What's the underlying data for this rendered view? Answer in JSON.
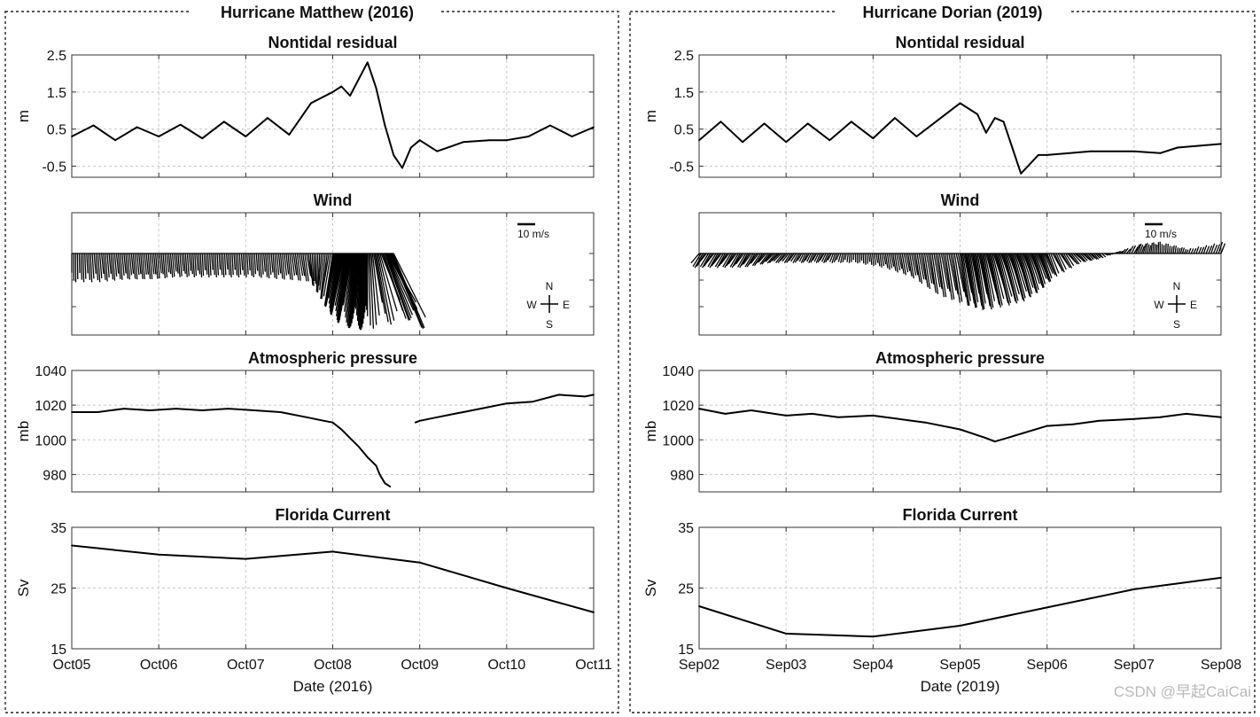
{
  "watermark": "CSDN @早起CaiCai",
  "storms": [
    {
      "title": "Hurricane Matthew (2016)",
      "xlabel": "Date (2016)",
      "x_ticks": [
        "Oct05",
        "Oct06",
        "Oct07",
        "Oct08",
        "Oct09",
        "Oct10",
        "Oct11"
      ],
      "x_range_days": [
        0,
        6
      ]
    },
    {
      "title": "Hurricane Dorian (2019)",
      "xlabel": "Date (2019)",
      "x_ticks": [
        "Sep02",
        "Sep03",
        "Sep04",
        "Sep05",
        "Sep06",
        "Sep07",
        "Sep08"
      ],
      "x_range_days": [
        0,
        6
      ]
    }
  ],
  "panel_titles": {
    "residual": "Nontidal residual",
    "wind": "Wind",
    "pressure": "Atmospheric pressure",
    "current": "Florida Current"
  },
  "axis_labels": {
    "residual": "m",
    "pressure": "mb",
    "current": "Sv"
  },
  "wind_legend": {
    "scale_label": "10 m/s",
    "compass": {
      "n": "N",
      "s": "S",
      "e": "E",
      "w": "W"
    }
  },
  "chart_data": [
    {
      "type": "line",
      "storm": "Hurricane Matthew (2016)",
      "title": "Nontidal residual",
      "ylabel": "m",
      "x_ticks": [
        "Oct05",
        "Oct06",
        "Oct07",
        "Oct08",
        "Oct09",
        "Oct10",
        "Oct11"
      ],
      "yticks": [
        -0.5,
        0.5,
        1.5,
        2.5
      ],
      "ylim": [
        -0.8,
        2.5
      ],
      "x_start": "Oct05",
      "x": [
        "Oct05 00:00",
        "Oct05 06:00",
        "Oct05 12:00",
        "Oct05 18:00",
        "Oct06 00:00",
        "Oct06 06:00",
        "Oct06 12:00",
        "Oct06 18:00",
        "Oct07 00:00",
        "Oct07 06:00",
        "Oct07 12:00",
        "Oct07 18:00",
        "Oct08 00:00",
        "Oct08 02:24",
        "Oct08 04:48",
        "Oct08 07:12",
        "Oct08 09:36",
        "Oct08 12:00",
        "Oct08 14:24",
        "Oct08 16:48",
        "Oct08 19:12",
        "Oct08 21:36",
        "Oct09 00:00",
        "Oct09 04:48",
        "Oct09 12:00",
        "Oct09 19:12",
        "Oct10 00:00",
        "Oct10 06:00",
        "Oct10 12:00",
        "Oct10 18:00",
        "Oct11 00:00"
      ],
      "y": [
        0.3,
        0.6,
        0.2,
        0.55,
        0.3,
        0.62,
        0.25,
        0.7,
        0.3,
        0.8,
        0.35,
        1.2,
        1.5,
        1.65,
        1.4,
        1.85,
        2.3,
        1.6,
        0.6,
        -0.2,
        -0.55,
        0.0,
        0.2,
        -0.1,
        0.15,
        0.2,
        0.2,
        0.3,
        0.6,
        0.3,
        0.55
      ]
    },
    {
      "type": "line",
      "storm": "Hurricane Dorian (2019)",
      "title": "Nontidal residual",
      "ylabel": "m",
      "x_ticks": [
        "Sep02",
        "Sep03",
        "Sep04",
        "Sep05",
        "Sep06",
        "Sep07",
        "Sep08"
      ],
      "yticks": [
        -0.5,
        0.5,
        1.5,
        2.5
      ],
      "ylim": [
        -0.8,
        2.5
      ],
      "x_start": "Sep02",
      "x": [
        "Sep02 00:00",
        "Sep02 06:00",
        "Sep02 12:00",
        "Sep02 18:00",
        "Sep03 00:00",
        "Sep03 06:00",
        "Sep03 12:00",
        "Sep03 18:00",
        "Sep04 00:00",
        "Sep04 06:00",
        "Sep04 12:00",
        "Sep04 18:00",
        "Sep05 00:00",
        "Sep05 04:48",
        "Sep05 07:12",
        "Sep05 09:36",
        "Sep05 12:00",
        "Sep05 14:24",
        "Sep05 16:48",
        "Sep05 19:12",
        "Sep05 21:36",
        "Sep06 00:00",
        "Sep06 12:00",
        "Sep07 00:00",
        "Sep07 07:12",
        "Sep07 12:00",
        "Sep08 00:00"
      ],
      "y": [
        0.2,
        0.7,
        0.15,
        0.65,
        0.15,
        0.65,
        0.2,
        0.7,
        0.25,
        0.8,
        0.3,
        0.75,
        1.2,
        0.9,
        0.4,
        0.8,
        0.7,
        0.0,
        -0.7,
        -0.45,
        -0.2,
        -0.2,
        -0.1,
        -0.1,
        -0.15,
        0.0,
        0.1
      ]
    },
    {
      "type": "wind_stick",
      "storm": "Hurricane Matthew (2016)",
      "title": "Wind",
      "scale_label": "10 m/s",
      "x_start": "Oct05",
      "x": [
        "Oct05 00:00",
        "Oct05 07:12",
        "Oct05 14:24",
        "Oct05 21:36",
        "Oct06 04:48",
        "Oct06 12:00",
        "Oct06 19:12",
        "Oct07 02:24",
        "Oct07 09:36",
        "Oct07 16:48",
        "Oct08 00:00",
        "Oct08 02:24",
        "Oct08 04:48",
        "Oct08 07:12",
        "Oct08 09:36",
        "Oct08 14:24",
        "Oct08 16:48"
      ],
      "u_ms": [
        0.0,
        0.5,
        0.5,
        0.5,
        0.5,
        0.3,
        0.3,
        0.3,
        0.5,
        1.0,
        -2.0,
        -2.5,
        -2.5,
        -1.0,
        0.0,
        6.0,
        8.0
      ],
      "v_ms": [
        -6.0,
        -6.0,
        -5.5,
        -5.5,
        -5.0,
        -5.0,
        -5.0,
        -5.0,
        -5.5,
        -6.0,
        -11.0,
        -13.0,
        -15.0,
        -16.0,
        -16.0,
        -14.0,
        -16.0
      ]
    },
    {
      "type": "wind_stick",
      "storm": "Hurricane Dorian (2019)",
      "title": "Wind",
      "scale_label": "10 m/s",
      "x_start": "Sep02",
      "x": [
        "Sep02 00:00",
        "Sep02 07:12",
        "Sep02 14:24",
        "Sep02 21:36",
        "Sep03 04:48",
        "Sep03 12:00",
        "Sep03 19:12",
        "Sep04 02:24",
        "Sep04 09:36",
        "Sep04 16:48",
        "Sep05 00:00",
        "Sep05 04:48",
        "Sep05 09:36",
        "Sep05 14:24",
        "Sep05 19:12",
        "Sep06 00:00",
        "Sep06 07:12",
        "Sep06 14:24",
        "Sep07 00:00",
        "Sep07 07:12",
        "Sep07 14:24",
        "Sep08 00:00"
      ],
      "u_ms": [
        -2.0,
        -2.0,
        -2.0,
        -2.0,
        -1.0,
        -1.0,
        0.0,
        0.5,
        1.0,
        1.5,
        2.0,
        2.0,
        3.0,
        3.0,
        2.5,
        2.0,
        2.0,
        1.0,
        1.0,
        0.0,
        0.5,
        1.0
      ],
      "v_ms": [
        -3.0,
        -3.0,
        -3.0,
        -2.0,
        -2.0,
        -2.0,
        -2.0,
        -3.0,
        -5.0,
        -9.0,
        -11.0,
        -12.0,
        -11.0,
        -10.0,
        -8.0,
        -5.0,
        -2.0,
        -1.0,
        2.0,
        2.5,
        1.0,
        2.5
      ]
    },
    {
      "type": "line",
      "storm": "Hurricane Matthew (2016)",
      "title": "Atmospheric pressure",
      "ylabel": "mb",
      "x_ticks": [
        "Oct05",
        "Oct06",
        "Oct07",
        "Oct08",
        "Oct09",
        "Oct10",
        "Oct11"
      ],
      "yticks": [
        980,
        1000,
        1020,
        1040
      ],
      "ylim": [
        970,
        1040
      ],
      "x_start": "Oct05",
      "segments": [
        {
          "x": [
            "Oct05 00:00",
            "Oct05 07:12",
            "Oct05 14:24",
            "Oct05 21:36",
            "Oct06 04:48",
            "Oct06 12:00",
            "Oct06 19:12",
            "Oct07 02:24",
            "Oct07 09:36",
            "Oct07 16:48",
            "Oct07 21:36",
            "Oct08 00:00",
            "Oct08 02:24",
            "Oct08 04:48",
            "Oct08 07:12",
            "Oct08 09:36",
            "Oct08 12:00",
            "Oct08 12:58",
            "Oct08 14:24",
            "Oct08 15:50"
          ],
          "y": [
            1016,
            1016,
            1018,
            1017,
            1018,
            1017,
            1018,
            1017,
            1016,
            1013,
            1011,
            1010,
            1006,
            1001,
            996,
            990,
            985,
            980,
            975,
            973
          ]
        },
        {
          "x": [
            "Oct08 22:48",
            "Oct09 00:00",
            "Oct09 04:48",
            "Oct09 09:36",
            "Oct09 12:00",
            "Oct09 16:48",
            "Oct10 00:00",
            "Oct10 07:12",
            "Oct10 14:24",
            "Oct10 21:36",
            "Oct11 00:00"
          ],
          "y": [
            1010,
            1011,
            1013,
            1015,
            1016,
            1018,
            1021,
            1022,
            1026,
            1025,
            1026
          ]
        }
      ]
    },
    {
      "type": "line",
      "storm": "Hurricane Dorian (2019)",
      "title": "Atmospheric pressure",
      "ylabel": "mb",
      "x_ticks": [
        "Sep02",
        "Sep03",
        "Sep04",
        "Sep05",
        "Sep06",
        "Sep07",
        "Sep08"
      ],
      "yticks": [
        980,
        1000,
        1020,
        1040
      ],
      "ylim": [
        970,
        1040
      ],
      "x_start": "Sep02",
      "x": [
        "Sep02 00:00",
        "Sep02 07:12",
        "Sep02 14:24",
        "Sep03 00:00",
        "Sep03 07:12",
        "Sep03 14:24",
        "Sep04 00:00",
        "Sep04 07:12",
        "Sep04 14:24",
        "Sep05 00:00",
        "Sep05 07:12",
        "Sep05 09:36",
        "Sep05 14:24",
        "Sep06 00:00",
        "Sep06 07:12",
        "Sep06 14:24",
        "Sep07 00:00",
        "Sep07 07:12",
        "Sep07 14:24",
        "Sep08 00:00"
      ],
      "y": [
        1018,
        1015,
        1017,
        1014,
        1015,
        1013,
        1014,
        1012,
        1010,
        1006,
        1001,
        999,
        1002,
        1008,
        1009,
        1011,
        1012,
        1013,
        1015,
        1013
      ]
    },
    {
      "type": "line",
      "storm": "Hurricane Matthew (2016)",
      "title": "Florida Current",
      "ylabel": "Sv",
      "x_ticks": [
        "Oct05",
        "Oct06",
        "Oct07",
        "Oct08",
        "Oct09",
        "Oct10",
        "Oct11"
      ],
      "yticks": [
        15,
        25,
        35
      ],
      "ylim": [
        15,
        35
      ],
      "x_start": "Oct05",
      "x": [
        "Oct05",
        "Oct06",
        "Oct07",
        "Oct08",
        "Oct09",
        "Oct10",
        "Oct11"
      ],
      "y": [
        32.0,
        30.5,
        29.8,
        31.0,
        29.2,
        25.0,
        21.0
      ]
    },
    {
      "type": "line",
      "storm": "Hurricane Dorian (2019)",
      "title": "Florida Current",
      "ylabel": "Sv",
      "x_ticks": [
        "Sep02",
        "Sep03",
        "Sep04",
        "Sep05",
        "Sep06",
        "Sep07",
        "Sep08"
      ],
      "yticks": [
        15,
        25,
        35
      ],
      "ylim": [
        15,
        35
      ],
      "x_start": "Sep02",
      "x": [
        "Sep02",
        "Sep03",
        "Sep04",
        "Sep05",
        "Sep06",
        "Sep07",
        "Sep08"
      ],
      "y": [
        22.0,
        17.5,
        17.0,
        18.8,
        21.8,
        24.8,
        26.7
      ]
    }
  ]
}
